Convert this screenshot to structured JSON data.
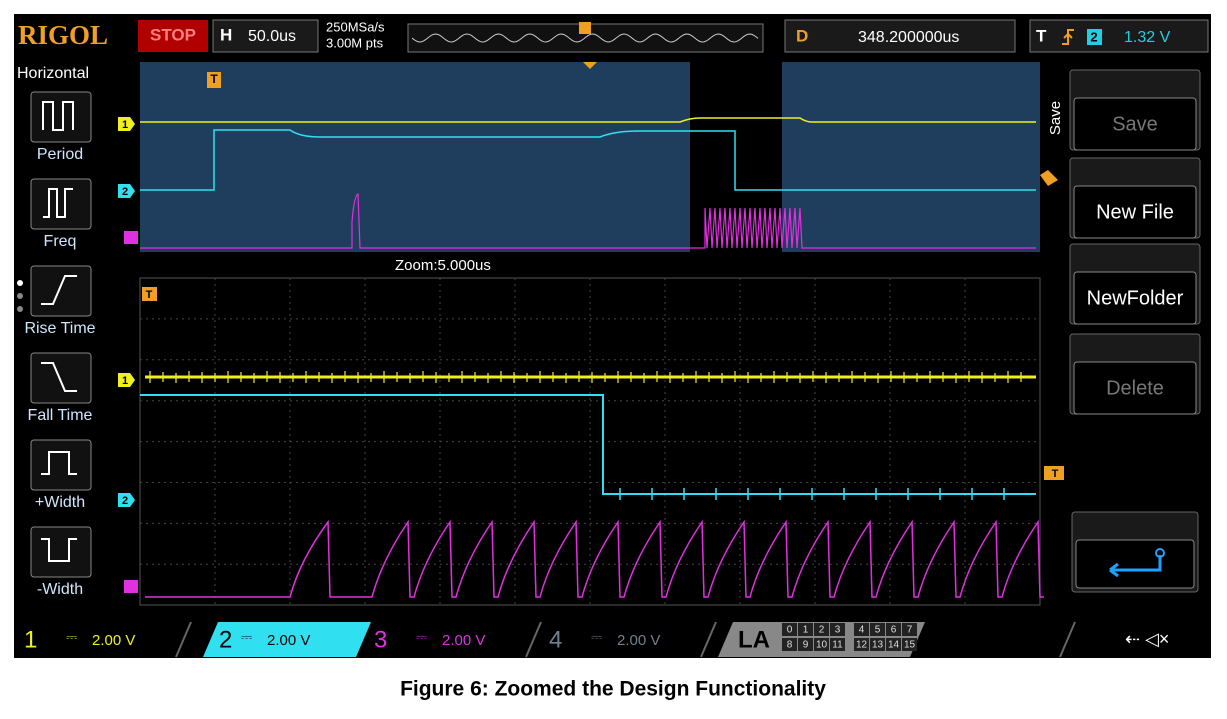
{
  "header": {
    "brand": "RIGOL",
    "status": "STOP",
    "timebase_label": "H",
    "timebase": "50.0us",
    "sample_rate": "250MSa/s",
    "memory_depth": "3.00M pts",
    "delay_label": "D",
    "delay": "348.200000us",
    "trigger_label": "T",
    "trigger_source": "2",
    "trigger_level": "1.32 V"
  },
  "left_menu": {
    "title": "Horizontal",
    "items": [
      "Period",
      "Freq",
      "Rise Time",
      "Fall Time",
      "+Width",
      "-Width"
    ]
  },
  "right_menu": {
    "title": "Save",
    "buttons": [
      "Save",
      "New File",
      "NewFolder",
      "Delete"
    ]
  },
  "zoom_label": "Zoom:5.000us",
  "markers": {
    "trigger": "T",
    "ch1": "1",
    "ch2": "2"
  },
  "channels": [
    {
      "number": "1",
      "scale": "2.00 V"
    },
    {
      "number": "2",
      "scale": "2.00 V"
    },
    {
      "number": "3",
      "scale": "2.00 V"
    },
    {
      "number": "4",
      "scale": "2.00 V"
    }
  ],
  "la": {
    "label": "LA",
    "digital_rows": [
      [
        "0",
        "1",
        "2",
        "3",
        "4",
        "5",
        "6",
        "7"
      ],
      [
        "8",
        "9",
        "10",
        "11",
        "12",
        "13",
        "14",
        "15"
      ]
    ]
  },
  "caption": "Figure 6: Zoomed the Design Functionality"
}
